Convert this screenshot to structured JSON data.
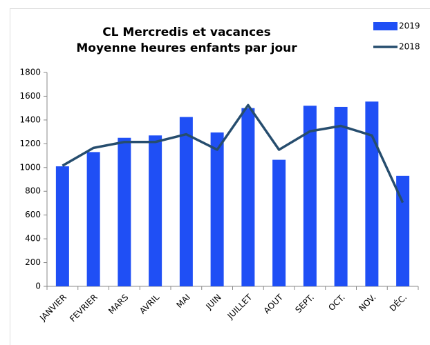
{
  "chart_data": {
    "type": "bar",
    "title": [
      "CL Mercredis et vacances",
      "Moyenne heures enfants par jour"
    ],
    "categories": [
      "JANVIER",
      "FEVRIER",
      "MARS",
      "AVRIL",
      "MAI",
      "JUIN",
      "JUILLET",
      "AOUT",
      "SEPT.",
      "OCT.",
      "NOV.",
      "DÉC."
    ],
    "series": [
      {
        "name": "2019",
        "type": "bar",
        "color": "#1f4ff5",
        "values": [
          1010,
          1130,
          1250,
          1270,
          1425,
          1295,
          1500,
          1065,
          1520,
          1510,
          1555,
          930
        ]
      },
      {
        "name": "2018",
        "type": "line",
        "color": "#264d6e",
        "values": [
          1015,
          1165,
          1215,
          1215,
          1280,
          1150,
          1525,
          1150,
          1305,
          1350,
          1270,
          705
        ]
      }
    ],
    "ylim": [
      0,
      1800
    ],
    "yticks": [
      0,
      200,
      400,
      600,
      800,
      1000,
      1200,
      1400,
      1600,
      1800
    ],
    "grid": false,
    "legend": "top-right"
  }
}
